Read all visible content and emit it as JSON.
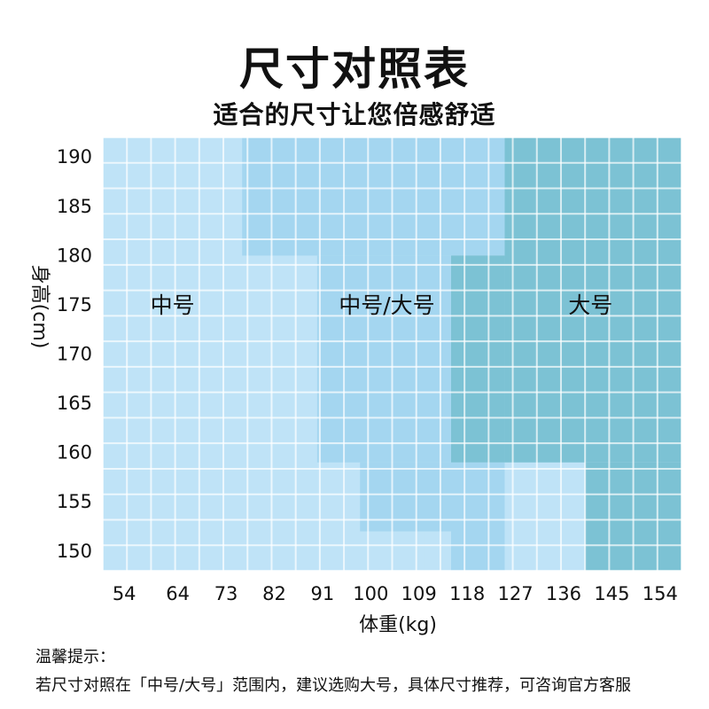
{
  "header": {
    "title": "尺寸对照表",
    "subtitle": "适合的尺寸让您倍感舒适"
  },
  "chart_data": {
    "type": "heatmap",
    "title": "尺寸对照表",
    "subtitle": "适合的尺寸让您倍感舒适",
    "xlabel": "体重(kg)",
    "ylabel": "身高(cm)",
    "x_ticks": [
      "54",
      "64",
      "73",
      "82",
      "91",
      "100",
      "109",
      "118",
      "127",
      "136",
      "145",
      "154"
    ],
    "y_ticks": [
      "190",
      "185",
      "180",
      "175",
      "170",
      "165",
      "160",
      "155",
      "150"
    ],
    "x_range_kg": [
      50,
      158
    ],
    "y_range_cm": [
      148,
      192
    ],
    "categories": [
      "中号",
      "中号/大号",
      "大号"
    ],
    "region_labels": [
      "中号",
      "中号/大号",
      "大号"
    ],
    "colors": {
      "中号": "#bfe3f7",
      "中号/大号": "#a4d6f0",
      "大号": "#7cc2d4"
    },
    "regions": [
      {
        "size": "中号",
        "weight_kg": [
          50,
          76
        ],
        "height_cm": [
          148,
          192
        ]
      },
      {
        "size": "中号",
        "weight_kg": [
          76,
          90
        ],
        "height_cm": [
          148,
          180
        ]
      },
      {
        "size": "中号",
        "weight_kg": [
          90,
          110
        ],
        "height_cm": [
          148,
          159
        ]
      },
      {
        "size": "中号/大号",
        "weight_kg": [
          76,
          125
        ],
        "height_cm": [
          180,
          192
        ]
      },
      {
        "size": "中号/大号",
        "weight_kg": [
          90,
          115
        ],
        "height_cm": [
          159,
          180
        ]
      },
      {
        "size": "中号/大号",
        "weight_kg": [
          98,
          125
        ],
        "height_cm": [
          152,
          159
        ]
      },
      {
        "size": "中号/大号",
        "weight_kg": [
          115,
          125
        ],
        "height_cm": [
          148,
          152
        ]
      },
      {
        "size": "大号",
        "weight_kg": [
          125,
          158
        ],
        "height_cm": [
          159,
          192
        ]
      },
      {
        "size": "大号",
        "weight_kg": [
          115,
          125
        ],
        "height_cm": [
          159,
          180
        ]
      },
      {
        "size": "大号",
        "weight_kg": [
          140,
          158
        ],
        "height_cm": [
          148,
          159
        ]
      }
    ],
    "grid": true
  },
  "notes": {
    "heading": "温馨提示：",
    "body": "若尺寸对照在「中号/大号」范围内，建议选购大号，具体尺寸推荐，可咨询官方客服"
  }
}
